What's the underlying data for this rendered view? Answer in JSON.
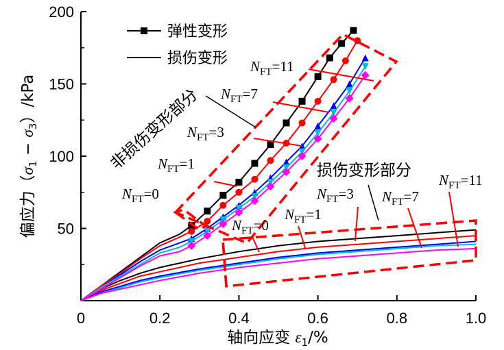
{
  "chart_data": {
    "type": "line",
    "xlabel": "轴向应变 ε1/%",
    "ylabel": "偏应力（σ1 − σ3）/kPa",
    "xlim": [
      0,
      1.0
    ],
    "ylim": [
      0,
      200
    ],
    "x_ticks": [
      "0",
      "0.2",
      "0.4",
      "0.6",
      "0.8",
      "1.0"
    ],
    "y_ticks": [
      "50",
      "100",
      "150",
      "200"
    ],
    "grid": false,
    "legend": {
      "position": "top-left",
      "entries": [
        {
          "label": "弹性变形",
          "style": "line-with-square-markers"
        },
        {
          "label": "损伤变形",
          "style": "solid-line"
        }
      ]
    },
    "elastic_series": [
      {
        "name": "NFT=0",
        "color": "#000000",
        "marker": "square",
        "x": [
          0,
          0.05,
          0.1,
          0.15,
          0.2,
          0.25,
          0.28,
          0.32,
          0.36,
          0.4,
          0.44,
          0.48,
          0.52,
          0.56,
          0.6,
          0.63,
          0.66,
          0.69
        ],
        "y": [
          0,
          10,
          20,
          30,
          40,
          46,
          52,
          62,
          73,
          82,
          95,
          108,
          123,
          138,
          155,
          168,
          178,
          187
        ]
      },
      {
        "name": "NFT=1",
        "color": "#ff0000",
        "marker": "circle",
        "x": [
          0,
          0.05,
          0.1,
          0.15,
          0.2,
          0.25,
          0.28,
          0.32,
          0.36,
          0.4,
          0.44,
          0.48,
          0.52,
          0.56,
          0.6,
          0.64,
          0.67,
          0.7
        ],
        "y": [
          0,
          10,
          19,
          29,
          38,
          44,
          48,
          55,
          66,
          75,
          84,
          97,
          109,
          123,
          138,
          153,
          166,
          180
        ]
      },
      {
        "name": "NFT=3",
        "color": "#0000ff",
        "marker": "triangle",
        "x": [
          0,
          0.05,
          0.1,
          0.15,
          0.2,
          0.25,
          0.28,
          0.32,
          0.36,
          0.4,
          0.44,
          0.48,
          0.52,
          0.56,
          0.6,
          0.64,
          0.68,
          0.72
        ],
        "y": [
          0,
          9,
          18,
          27,
          35,
          40,
          43,
          50,
          58,
          66,
          75,
          85,
          96,
          107,
          121,
          135,
          150,
          168
        ]
      },
      {
        "name": "NFT=7",
        "color": "#00bcd4",
        "marker": "triangle-down",
        "x": [
          0,
          0.05,
          0.1,
          0.15,
          0.2,
          0.25,
          0.28,
          0.32,
          0.36,
          0.4,
          0.44,
          0.48,
          0.52,
          0.56,
          0.6,
          0.64,
          0.68,
          0.72
        ],
        "y": [
          0,
          9,
          17,
          25,
          33,
          37,
          41,
          48,
          56,
          64,
          72,
          82,
          92,
          103,
          116,
          130,
          145,
          162
        ]
      },
      {
        "name": "NFT=11",
        "color": "#ff00ff",
        "marker": "diamond",
        "x": [
          0,
          0.05,
          0.1,
          0.15,
          0.2,
          0.25,
          0.28,
          0.32,
          0.36,
          0.4,
          0.44,
          0.48,
          0.52,
          0.56,
          0.6,
          0.64,
          0.68,
          0.72
        ],
        "y": [
          0,
          8,
          16,
          24,
          31,
          34,
          38,
          45,
          53,
          61,
          69,
          79,
          89,
          100,
          112,
          126,
          140,
          156
        ]
      }
    ],
    "damage_series": [
      {
        "name": "NFT=0",
        "color": "#000000",
        "x": [
          0,
          0.05,
          0.1,
          0.15,
          0.2,
          0.3,
          0.4,
          0.5,
          0.6,
          0.7,
          0.8,
          0.9,
          1.0
        ],
        "y": [
          0,
          8,
          14,
          19,
          23,
          29,
          34,
          38,
          41,
          43,
          45,
          47,
          49
        ]
      },
      {
        "name": "NFT=1",
        "color": "#ff0000",
        "x": [
          0,
          0.05,
          0.1,
          0.15,
          0.2,
          0.3,
          0.4,
          0.5,
          0.6,
          0.7,
          0.8,
          0.9,
          1.0
        ],
        "y": [
          0,
          7,
          12,
          17,
          20,
          26,
          30,
          34,
          37,
          39,
          41,
          43,
          45
        ]
      },
      {
        "name": "NFT=3",
        "color": "#0000ff",
        "x": [
          0,
          0.05,
          0.1,
          0.15,
          0.2,
          0.3,
          0.4,
          0.5,
          0.6,
          0.7,
          0.8,
          0.9,
          1.0
        ],
        "y": [
          0,
          6,
          10,
          14,
          17,
          22,
          26,
          30,
          33,
          35,
          37,
          39,
          41
        ]
      },
      {
        "name": "NFT=7",
        "color": "#00bcd4",
        "x": [
          0,
          0.05,
          0.1,
          0.15,
          0.2,
          0.3,
          0.4,
          0.5,
          0.6,
          0.7,
          0.8,
          0.9,
          1.0
        ],
        "y": [
          0,
          5,
          9,
          13,
          16,
          21,
          25,
          29,
          32,
          34,
          36,
          38,
          39
        ]
      },
      {
        "name": "NFT=11",
        "color": "#ff00ff",
        "x": [
          0,
          0.05,
          0.1,
          0.15,
          0.2,
          0.3,
          0.4,
          0.5,
          0.6,
          0.7,
          0.8,
          0.9,
          1.0
        ],
        "y": [
          0,
          5,
          8,
          11,
          14,
          19,
          23,
          26,
          29,
          31,
          33,
          35,
          36
        ]
      }
    ],
    "annotations": {
      "nondamage_region": "非损伤变形部分",
      "damage_region": "损伤变形部分",
      "elastic_labels": [
        {
          "N": "N",
          "sub": "FT",
          "eq": "=11"
        },
        {
          "N": "N",
          "sub": "FT",
          "eq": "=7"
        },
        {
          "N": "N",
          "sub": "FT",
          "eq": "=3"
        },
        {
          "N": "N",
          "sub": "FT",
          "eq": "=1"
        },
        {
          "N": "N",
          "sub": "FT",
          "eq": "=0"
        }
      ],
      "damage_labels": [
        {
          "N": "N",
          "sub": "FT",
          "eq": "=0"
        },
        {
          "N": "N",
          "sub": "FT",
          "eq": "=1"
        },
        {
          "N": "N",
          "sub": "FT",
          "eq": "=3"
        },
        {
          "N": "N",
          "sub": "FT",
          "eq": "=7"
        },
        {
          "N": "N",
          "sub": "FT",
          "eq": "=11"
        }
      ]
    },
    "region_box_color": "#ff0000"
  }
}
